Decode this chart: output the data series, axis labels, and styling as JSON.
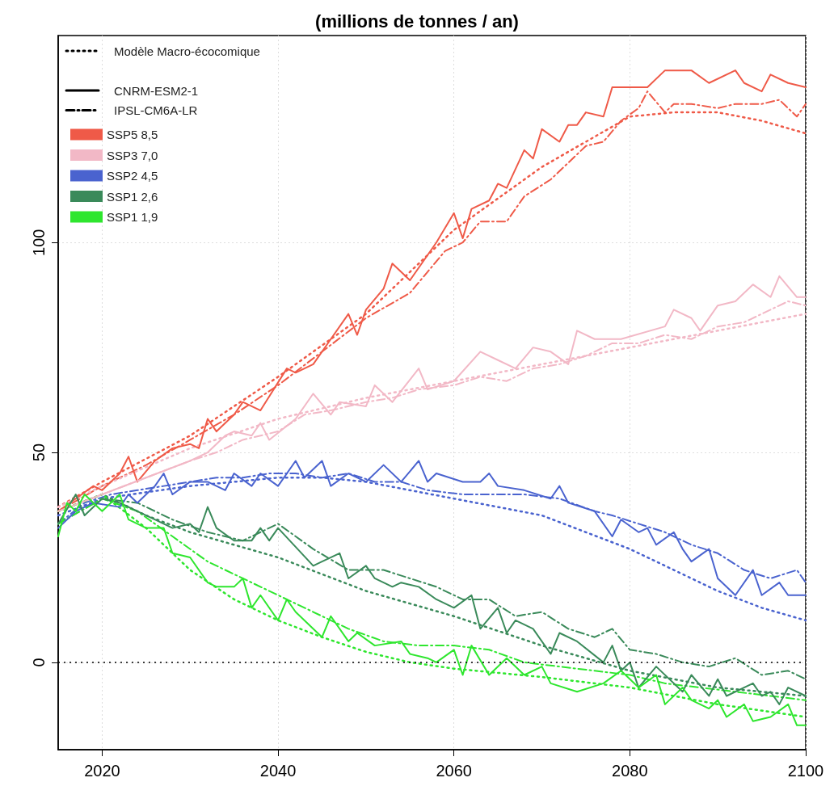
{
  "chart_data": {
    "type": "line",
    "title": "(millions de tonnes / an)",
    "xlim": [
      2015,
      2100
    ],
    "xticks": [
      2020,
      2040,
      2060,
      2080,
      2100
    ],
    "ylim": [
      -20.8,
      149.3
    ],
    "yticks": [
      0,
      50,
      100
    ],
    "grid": true,
    "legend": "top left",
    "annotations": [
      "Modèle Macro-écocomique",
      "CNRM-ESM2-1",
      "IPSL-CM6A-LR"
    ],
    "ref_lines": [
      {
        "axis": "y",
        "value": 0,
        "label": null,
        "color": "#000000",
        "line_style": "dotted"
      }
    ],
    "series": [
      {
        "color": "#ef5a48",
        "line_style": "dotted",
        "x": [
          2015,
          2020,
          2030,
          2040,
          2050,
          2060,
          2070,
          2080,
          2085,
          2090,
          2095,
          2100
        ],
        "values": [
          37,
          43,
          54,
          68,
          83,
          103,
          118,
          130,
          131,
          131,
          129,
          126
        ]
      },
      {
        "name": "SSP5 8,5",
        "color": "#ef5a48",
        "line_style": "solid",
        "x": [
          2015,
          2017,
          2019,
          2020,
          2022,
          2023,
          2024,
          2026,
          2028,
          2030,
          2031,
          2032,
          2033,
          2035,
          2036,
          2038,
          2041,
          2042,
          2044,
          2046,
          2048,
          2049,
          2050,
          2052,
          2053,
          2055,
          2058,
          2060,
          2061,
          2062,
          2064,
          2065,
          2066,
          2068,
          2069,
          2070,
          2072,
          2073,
          2074,
          2075,
          2077,
          2078,
          2080,
          2082,
          2084,
          2085,
          2087,
          2089,
          2092,
          2093,
          2095,
          2096,
          2098,
          2100
        ],
        "values": [
          36,
          39,
          42,
          41,
          45,
          49,
          43,
          48,
          51,
          52,
          51,
          58,
          55,
          59,
          62,
          60,
          70,
          69,
          71,
          77,
          83,
          78,
          84,
          89,
          95,
          91,
          100,
          107,
          101,
          108,
          110,
          114,
          113,
          122,
          120,
          127,
          124,
          128,
          128,
          131,
          130,
          137,
          137,
          137,
          141,
          141,
          141,
          138,
          141,
          138,
          136,
          140,
          138,
          137
        ]
      },
      {
        "color": "#ef5a48",
        "line_style": "dashed",
        "x": [
          2015,
          2020,
          2025,
          2030,
          2035,
          2040,
          2045,
          2050,
          2055,
          2059,
          2061,
          2063,
          2066,
          2068,
          2071,
          2075,
          2077,
          2079,
          2081,
          2082,
          2084,
          2085,
          2087,
          2090,
          2092,
          2095,
          2097,
          2099,
          2100
        ],
        "values": [
          36,
          42,
          47,
          53,
          59,
          66,
          74,
          82,
          88,
          98,
          100,
          105,
          105,
          111,
          115,
          123,
          124,
          129,
          132,
          136,
          131,
          133,
          133,
          132,
          133,
          133,
          134,
          130,
          133
        ]
      },
      {
        "color": "#f2b8c6",
        "line_style": "dotted",
        "x": [
          2015,
          2020,
          2030,
          2040,
          2050,
          2060,
          2070,
          2080,
          2090,
          2100
        ],
        "values": [
          37,
          42,
          51,
          58,
          63,
          67,
          71,
          75,
          79,
          83
        ]
      },
      {
        "name": "SSP3 7,0",
        "color": "#f2b8c6",
        "line_style": "solid",
        "x": [
          2015,
          2020,
          2025,
          2030,
          2032,
          2034,
          2035,
          2037,
          2038,
          2039,
          2042,
          2044,
          2046,
          2047,
          2050,
          2051,
          2053,
          2056,
          2057,
          2060,
          2063,
          2065,
          2067,
          2069,
          2071,
          2073,
          2074,
          2076,
          2079,
          2084,
          2085,
          2087,
          2088,
          2090,
          2092,
          2094,
          2096,
          2097,
          2099,
          2100
        ],
        "values": [
          36,
          40,
          44,
          48,
          50,
          54,
          55,
          54,
          57,
          53,
          58,
          64,
          59,
          62,
          61,
          66,
          62,
          70,
          65,
          67,
          74,
          72,
          70,
          75,
          74,
          71,
          79,
          77,
          77,
          80,
          84,
          82,
          79,
          85,
          86,
          90,
          87,
          92,
          87,
          87
        ]
      },
      {
        "color": "#f2b8c6",
        "line_style": "dashed",
        "x": [
          2015,
          2020,
          2025,
          2030,
          2033,
          2036,
          2040,
          2043,
          2046,
          2050,
          2053,
          2056,
          2060,
          2063,
          2066,
          2069,
          2072,
          2075,
          2078,
          2081,
          2084,
          2087,
          2090,
          2093,
          2096,
          2098,
          2100
        ],
        "values": [
          36,
          40,
          44,
          48,
          50,
          53,
          55,
          59,
          60,
          62,
          63,
          65,
          66,
          68,
          67,
          70,
          71,
          73,
          76,
          76,
          78,
          77,
          80,
          81,
          84,
          86,
          85
        ]
      },
      {
        "color": "#4a63cf",
        "line_style": "dotted",
        "x": [
          2015,
          2020,
          2030,
          2040,
          2045,
          2050,
          2060,
          2070,
          2080,
          2090,
          2095,
          2100
        ],
        "values": [
          35,
          39,
          42,
          44,
          44,
          43,
          39,
          35,
          27,
          17,
          13,
          10
        ]
      },
      {
        "name": "SSP2 4,5",
        "color": "#4a63cf",
        "line_style": "solid",
        "x": [
          2015,
          2017,
          2019,
          2022,
          2023,
          2024,
          2026,
          2027,
          2028,
          2030,
          2032,
          2034,
          2035,
          2037,
          2038,
          2040,
          2042,
          2043,
          2045,
          2046,
          2048,
          2050,
          2052,
          2054,
          2056,
          2057,
          2058,
          2061,
          2063,
          2064,
          2065,
          2068,
          2071,
          2072,
          2073,
          2076,
          2078,
          2079,
          2081,
          2082,
          2083,
          2085,
          2086,
          2087,
          2089,
          2090,
          2092,
          2094,
          2095,
          2097,
          2098,
          2100
        ],
        "values": [
          32,
          36,
          38,
          37,
          40,
          38,
          42,
          45,
          40,
          43,
          43,
          41,
          45,
          42,
          45,
          42,
          48,
          44,
          48,
          42,
          45,
          43,
          47,
          43,
          48,
          43,
          45,
          43,
          43,
          45,
          42,
          41,
          39,
          42,
          38,
          36,
          30,
          34,
          31,
          32,
          28,
          31,
          27,
          24,
          27,
          20,
          16,
          22,
          16,
          19,
          16,
          16
        ]
      },
      {
        "color": "#4a63cf",
        "line_style": "dashed",
        "x": [
          2015,
          2018,
          2021,
          2024,
          2027,
          2030,
          2033,
          2036,
          2039,
          2042,
          2045,
          2048,
          2051,
          2054,
          2057,
          2061,
          2064,
          2068,
          2072,
          2076,
          2078,
          2081,
          2084,
          2087,
          2090,
          2093,
          2096,
          2099,
          2100
        ],
        "values": [
          33,
          38,
          40,
          41,
          42,
          43,
          44,
          44,
          45,
          45,
          44,
          45,
          43,
          43,
          41,
          40,
          40,
          40,
          39,
          36,
          35,
          33,
          31,
          28,
          26,
          22,
          20,
          22,
          19
        ]
      },
      {
        "color": "#3a8a5a",
        "line_style": "dotted",
        "x": [
          2015,
          2020,
          2025,
          2030,
          2040,
          2050,
          2060,
          2070,
          2080,
          2090,
          2100
        ],
        "values": [
          36,
          40,
          35,
          31,
          25,
          17,
          11,
          4,
          -2,
          -6,
          -8
        ]
      },
      {
        "name": "SSP1 2,6",
        "color": "#3a8a5a",
        "line_style": "solid",
        "x": [
          2015,
          2017,
          2018,
          2020,
          2022,
          2024,
          2026,
          2028,
          2030,
          2031,
          2032,
          2033,
          2035,
          2037,
          2038,
          2039,
          2040,
          2044,
          2045,
          2047,
          2048,
          2050,
          2051,
          2053,
          2054,
          2056,
          2058,
          2060,
          2062,
          2063,
          2065,
          2066,
          2067,
          2069,
          2071,
          2072,
          2074,
          2077,
          2078,
          2079,
          2080,
          2081,
          2083,
          2086,
          2087,
          2089,
          2090,
          2091,
          2094,
          2095,
          2096,
          2097,
          2098,
          2100
        ],
        "values": [
          33,
          40,
          35,
          39,
          38,
          36,
          34,
          32,
          33,
          31,
          37,
          32,
          29,
          29,
          32,
          29,
          32,
          23,
          24,
          26,
          20,
          23,
          20,
          18,
          19,
          18,
          15,
          13,
          16,
          8,
          13,
          7,
          10,
          8,
          2,
          7,
          5,
          0,
          4,
          -2,
          0,
          -6,
          -1,
          -7,
          -3,
          -8,
          -4,
          -8,
          -5,
          -8,
          -7,
          -10,
          -6,
          -8
        ]
      },
      {
        "color": "#3a8a5a",
        "line_style": "dashed",
        "x": [
          2015,
          2020,
          2024,
          2028,
          2032,
          2036,
          2040,
          2044,
          2048,
          2052,
          2055,
          2058,
          2061,
          2064,
          2067,
          2070,
          2073,
          2076,
          2078,
          2080,
          2083,
          2086,
          2089,
          2092,
          2095,
          2098,
          2100
        ],
        "values": [
          33,
          39,
          38,
          34,
          31,
          29,
          33,
          27,
          22,
          22,
          20,
          18,
          15,
          15,
          11,
          12,
          8,
          6,
          8,
          3,
          2,
          0,
          -1,
          1,
          -3,
          -2,
          -4
        ]
      },
      {
        "color": "#2ee62e",
        "line_style": "dotted",
        "x": [
          2015,
          2020,
          2025,
          2030,
          2035,
          2040,
          2045,
          2050,
          2055,
          2060,
          2070,
          2080,
          2090,
          2100
        ],
        "values": [
          36,
          40,
          32,
          22,
          15,
          10,
          6,
          2.5,
          0,
          -1.5,
          -3.5,
          -6,
          -10,
          -13
        ]
      },
      {
        "name": "SSP1 1,9",
        "color": "#2ee62e",
        "line_style": "solid",
        "x": [
          2015,
          2016,
          2017,
          2018,
          2019,
          2020,
          2022,
          2023,
          2025,
          2027,
          2028,
          2030,
          2032,
          2033,
          2035,
          2036,
          2037,
          2038,
          2040,
          2041,
          2042,
          2045,
          2046,
          2048,
          2049,
          2051,
          2054,
          2055,
          2057,
          2058,
          2060,
          2061,
          2062,
          2064,
          2066,
          2068,
          2070,
          2071,
          2074,
          2077,
          2079,
          2081,
          2083,
          2084,
          2086,
          2087,
          2089,
          2090,
          2091,
          2093,
          2094,
          2096,
          2098,
          2099,
          2100
        ],
        "values": [
          30,
          38,
          36,
          40,
          38,
          36,
          40,
          34,
          32,
          32,
          26,
          25,
          19,
          18,
          18,
          20,
          13,
          16,
          10,
          15,
          12,
          6,
          11,
          5,
          7,
          4,
          5,
          2,
          1,
          0,
          3,
          -3,
          4,
          -3,
          1,
          -3,
          -1,
          -5,
          -7,
          -5,
          -2,
          -6,
          -3,
          -10,
          -6,
          -9,
          -11,
          -9,
          -13,
          -10,
          -14,
          -13,
          -10,
          -15,
          -15
        ]
      },
      {
        "color": "#2ee62e",
        "line_style": "dashed",
        "x": [
          2015,
          2020,
          2024,
          2028,
          2032,
          2036,
          2040,
          2044,
          2048,
          2052,
          2056,
          2060,
          2064,
          2068,
          2072,
          2076,
          2080,
          2084,
          2088,
          2092,
          2096,
          2100
        ],
        "values": [
          33,
          39,
          36,
          30,
          24,
          20,
          16,
          12,
          8,
          5,
          4,
          4,
          3,
          0,
          -1,
          -2,
          -3,
          -5,
          -6,
          -7,
          -8,
          -9
        ]
      }
    ]
  }
}
